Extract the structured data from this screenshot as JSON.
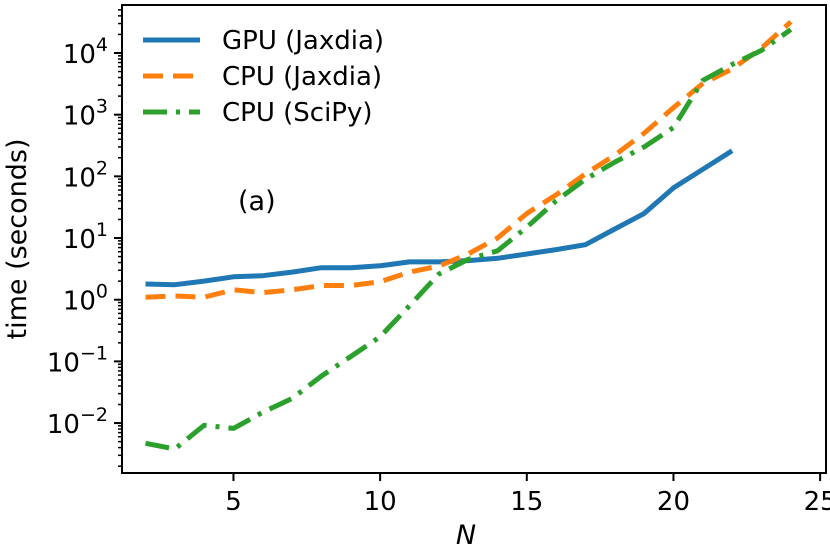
{
  "chart_data": {
    "type": "line",
    "xlabel": "N",
    "ylabel": "time (seconds)",
    "yscale": "log",
    "xlim": [
      1.2,
      25.2
    ],
    "ylim": [
      0.00155,
      60000
    ],
    "xticks": [
      5,
      10,
      15,
      20,
      25
    ],
    "yticks": [
      {
        "value": 0.01,
        "base": "10",
        "exp": "−2"
      },
      {
        "value": 0.1,
        "base": "10",
        "exp": "−1"
      },
      {
        "value": 1,
        "base": "10",
        "exp": "0"
      },
      {
        "value": 10,
        "base": "10",
        "exp": "1"
      },
      {
        "value": 100,
        "base": "10",
        "exp": "2"
      },
      {
        "value": 1000,
        "base": "10",
        "exp": "3"
      },
      {
        "value": 10000,
        "base": "10",
        "exp": "4"
      }
    ],
    "grid": false,
    "legend_position": "top-left",
    "annotation": "(a)",
    "series": [
      {
        "name": "GPU (Jaxdia)",
        "color": "#1f77b4",
        "style": "solid",
        "x": [
          2,
          3,
          4,
          5,
          6,
          7,
          8,
          9,
          10,
          11,
          12,
          13,
          14,
          15,
          16,
          17,
          18,
          19,
          20,
          21,
          22
        ],
        "y": [
          1.8,
          1.75,
          2.0,
          2.35,
          2.45,
          2.8,
          3.3,
          3.3,
          3.55,
          4.1,
          4.1,
          4.3,
          4.7,
          5.5,
          6.5,
          7.8,
          14,
          25,
          65,
          130,
          260
        ]
      },
      {
        "name": "CPU (Jaxdia)",
        "color": "#ff7f0e",
        "style": "dashed",
        "x": [
          2,
          3,
          4,
          5,
          6,
          7,
          8,
          9,
          10,
          11,
          12,
          13,
          14,
          15,
          16,
          17,
          18,
          19,
          20,
          21,
          22,
          23,
          24
        ],
        "y": [
          1.1,
          1.15,
          1.1,
          1.45,
          1.3,
          1.45,
          1.7,
          1.7,
          1.95,
          2.8,
          3.5,
          5.5,
          10,
          25,
          50,
          110,
          220,
          500,
          1300,
          3200,
          5500,
          12000,
          32000
        ]
      },
      {
        "name": "CPU (SciPy)",
        "color": "#2ca02c",
        "style": "dashdot",
        "x": [
          2,
          3,
          4,
          5,
          6,
          7,
          8,
          9,
          10,
          11,
          12,
          13,
          14,
          15,
          16,
          17,
          18,
          19,
          20,
          21,
          22,
          23,
          24
        ],
        "y": [
          0.0047,
          0.0038,
          0.0092,
          0.0082,
          0.015,
          0.025,
          0.058,
          0.12,
          0.25,
          0.8,
          2.6,
          4.5,
          6.2,
          15,
          40,
          90,
          170,
          300,
          620,
          3600,
          6500,
          11000,
          24000
        ]
      }
    ]
  }
}
